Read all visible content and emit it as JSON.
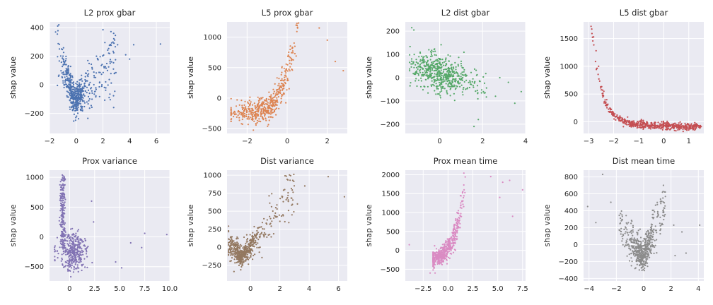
{
  "chart_data": [
    {
      "type": "scatter",
      "title": "L2 prox gbar",
      "ylabel": "shap value",
      "xlim": [
        -2,
        7
      ],
      "ylim": [
        -340,
        440
      ],
      "xticks": [
        -2,
        0,
        2,
        4,
        6
      ],
      "yticks": [
        -200,
        0,
        200,
        400
      ],
      "color": "#4c72b0",
      "grid": true,
      "shape": "v",
      "vertex": [
        -0.1,
        -120
      ],
      "slopeL": -280,
      "slopeR": 100,
      "spread": 55,
      "n": 560,
      "xmin": -1.6,
      "xmax": 3.0,
      "outliers": [
        [
          -1.3,
          420
        ],
        [
          2.0,
          385
        ],
        [
          3.1,
          280
        ],
        [
          3.7,
          210
        ],
        [
          4.3,
          280
        ],
        [
          6.3,
          285
        ],
        [
          4.0,
          180
        ],
        [
          2.8,
          360
        ]
      ]
    },
    {
      "type": "scatter",
      "title": "L5 prox gbar",
      "ylabel": "shap value",
      "xlim": [
        -3,
        3
      ],
      "ylim": [
        -580,
        1250
      ],
      "xticks": [
        -2,
        0,
        2
      ],
      "yticks": [
        -500,
        0,
        500,
        1000
      ],
      "color": "#dd8452",
      "grid": true,
      "shape": "curve",
      "base": [
        -1,
        -200
      ],
      "slopeL": 40,
      "curveK": 1.4,
      "spread": 90,
      "n": 560,
      "xmin": -2.8,
      "xmax": 2.8,
      "outliers": [
        [
          -2.8,
          -10
        ],
        [
          -2.5,
          -30
        ],
        [
          1.6,
          1150
        ],
        [
          2.0,
          950
        ],
        [
          2.4,
          600
        ],
        [
          2.8,
          450
        ]
      ]
    },
    {
      "type": "scatter",
      "title": "L2 dist gbar",
      "ylabel": "shap value",
      "xlim": [
        -1.6,
        4
      ],
      "ylim": [
        -240,
        240
      ],
      "xticks": [
        0,
        2,
        4
      ],
      "yticks": [
        -200,
        -100,
        0,
        100,
        200
      ],
      "color": "#55a868",
      "grid": true,
      "shape": "cloud",
      "center": [
        0,
        20
      ],
      "slope": -25,
      "spread": 38,
      "n": 560,
      "xmin": -1.4,
      "xmax": 2.2,
      "outliers": [
        [
          -1.3,
          215
        ],
        [
          -1.2,
          205
        ],
        [
          1.6,
          -210
        ],
        [
          1.8,
          -180
        ],
        [
          2.6,
          -80
        ],
        [
          3.2,
          -20
        ],
        [
          3.5,
          -110
        ],
        [
          3.8,
          -60
        ],
        [
          2.8,
          0
        ]
      ]
    },
    {
      "type": "scatter",
      "title": "L5 dist gbar",
      "ylabel": "shap value",
      "xlim": [
        -3.2,
        1.6
      ],
      "ylim": [
        -210,
        1800
      ],
      "xticks": [
        -3,
        -2,
        -1,
        0,
        1
      ],
      "yticks": [
        0,
        500,
        1000,
        1500
      ],
      "color": "#c44e52",
      "grid": true,
      "shape": "exp",
      "amp": 1800,
      "decay": 2.6,
      "x0": -2.9,
      "floor": -40,
      "spread": 35,
      "n": 560,
      "xmin": -2.9,
      "xmax": 1.5,
      "outliers": [
        [
          -2.9,
          1720
        ],
        [
          -2.8,
          1530
        ],
        [
          -2.7,
          1280
        ],
        [
          -2.6,
          1000
        ]
      ]
    },
    {
      "type": "scatter",
      "title": "Prox variance",
      "ylabel": "shap value",
      "xlim": [
        -2,
        10
      ],
      "ylim": [
        -740,
        1120
      ],
      "xticks": [
        0,
        2.5,
        5,
        7.5,
        10
      ],
      "xticklabels": [
        "0",
        "2.5",
        "5.0",
        "7.5",
        "10.0"
      ],
      "yticks": [
        -500,
        0,
        500,
        1000
      ],
      "color": "#8172b3",
      "grid": true,
      "shape": "spike",
      "spikeX": -0.7,
      "spikeTop": 1050,
      "center": [
        0.3,
        -250
      ],
      "spread": 170,
      "n": 560,
      "xmin": -1.5,
      "xmax": 1.8,
      "outliers": [
        [
          2.2,
          600
        ],
        [
          2.4,
          250
        ],
        [
          4.6,
          -420
        ],
        [
          5.2,
          -520
        ],
        [
          6.1,
          -100
        ],
        [
          7.2,
          -180
        ],
        [
          7.5,
          60
        ],
        [
          9.7,
          40
        ]
      ]
    },
    {
      "type": "scatter",
      "title": "Dist variance",
      "ylabel": "shap value",
      "xlim": [
        -1.6,
        6.6
      ],
      "ylim": [
        -470,
        1070
      ],
      "xticks": [
        0,
        2,
        4,
        6
      ],
      "yticks": [
        -250,
        0,
        250,
        500,
        750,
        1000
      ],
      "color": "#937860",
      "grid": true,
      "shape": "v",
      "vertex": [
        -0.6,
        -150
      ],
      "slopeL": -230,
      "slopeR": 270,
      "spread": 70,
      "n": 560,
      "xmin": -1.5,
      "xmax": 3.0,
      "outliers": [
        [
          5.3,
          980
        ],
        [
          6.4,
          700
        ],
        [
          3.7,
          850
        ],
        [
          2.7,
          930
        ],
        [
          3.2,
          600
        ]
      ]
    },
    {
      "type": "scatter",
      "title": "Prox mean time",
      "ylabel": "shap value",
      "xlim": [
        -4.3,
        7.8
      ],
      "ylim": [
        -810,
        2120
      ],
      "xticks": [
        -2.5,
        0,
        2.5,
        5,
        7.5
      ],
      "xticklabels": [
        "−2.5",
        "0.0",
        "2.5",
        "5.0",
        "7.5"
      ],
      "yticks": [
        -500,
        0,
        500,
        1000,
        1500,
        2000
      ],
      "color": "#da8bc3",
      "grid": true,
      "shape": "curve",
      "base": [
        -0.5,
        -100
      ],
      "slopeL": 150,
      "curveK": 1.1,
      "spread": 110,
      "n": 560,
      "xmin": -1.5,
      "xmax": 4.0,
      "outliers": [
        [
          -3.9,
          150
        ],
        [
          4.3,
          1950
        ],
        [
          5.5,
          1800
        ],
        [
          6.2,
          1850
        ],
        [
          7.5,
          1600
        ],
        [
          6.5,
          900
        ],
        [
          5.2,
          1400
        ],
        [
          -1.8,
          -600
        ]
      ]
    },
    {
      "type": "scatter",
      "title": "Dist mean time",
      "ylabel": "shap value",
      "xlim": [
        -4.4,
        4.4
      ],
      "ylim": [
        -430,
        880
      ],
      "xticks": [
        -4,
        -2,
        0,
        2,
        4
      ],
      "yticks": [
        -400,
        -200,
        0,
        200,
        400,
        600,
        800
      ],
      "color": "#8c8c8c",
      "grid": true,
      "shape": "v",
      "vertex": [
        -0.1,
        -150
      ],
      "slopeL": -250,
      "slopeR": 370,
      "spread": 85,
      "n": 560,
      "xmin": -1.8,
      "xmax": 1.6,
      "outliers": [
        [
          -4.1,
          450
        ],
        [
          -3.0,
          830
        ],
        [
          -3.5,
          260
        ],
        [
          -2.4,
          500
        ],
        [
          2.3,
          -130
        ],
        [
          2.8,
          150
        ],
        [
          3.1,
          -100
        ],
        [
          4.1,
          230
        ],
        [
          2.2,
          230
        ]
      ]
    }
  ]
}
